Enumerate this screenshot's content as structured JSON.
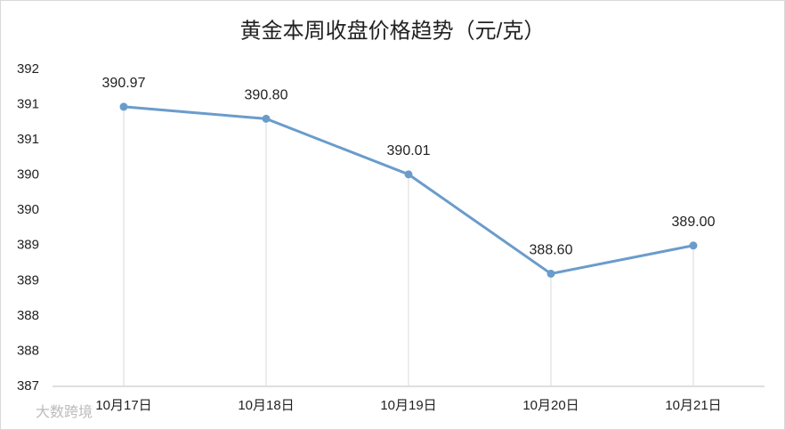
{
  "chart_data": {
    "type": "line",
    "title": "黄金本周收盘价格趋势（元/克）",
    "categories": [
      "10月17日",
      "10月18日",
      "10月19日",
      "10月20日",
      "10月21日"
    ],
    "values": [
      390.97,
      390.8,
      390.01,
      388.6,
      389.0
    ],
    "value_labels": [
      "390.97",
      "390.80",
      "390.01",
      "388.60",
      "389.00"
    ],
    "color": "#6a9ccb",
    "ylim": [
      387,
      391.5
    ],
    "yticks": [
      {
        "value": 387,
        "label": "387"
      },
      {
        "value": 387.5,
        "label": "388"
      },
      {
        "value": 388,
        "label": "388"
      },
      {
        "value": 388.5,
        "label": "389"
      },
      {
        "value": 389,
        "label": "389"
      },
      {
        "value": 389.5,
        "label": "390"
      },
      {
        "value": 390,
        "label": "390"
      },
      {
        "value": 390.5,
        "label": "391"
      },
      {
        "value": 391,
        "label": "391"
      },
      {
        "value": 391.5,
        "label": "392"
      }
    ],
    "watermark": "大数跨境"
  }
}
